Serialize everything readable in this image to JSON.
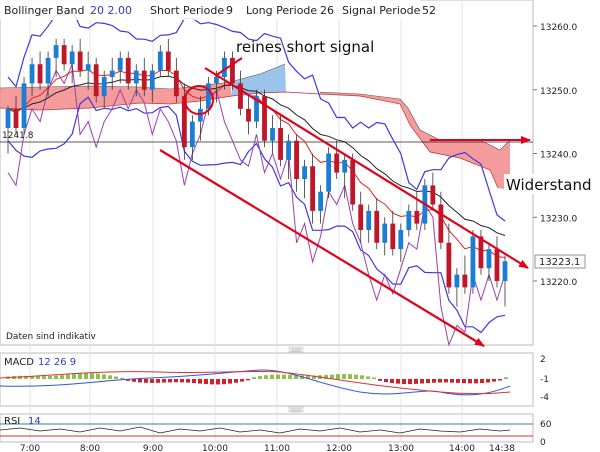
{
  "header": {
    "bollinger_label": "Bollinger Band",
    "bollinger_values": "20  2.00",
    "short_label": "Short Periode",
    "short_value": "9",
    "long_label": "Long Periode",
    "long_value": "26",
    "signal_label": "Signal Periode",
    "signal_value": "52"
  },
  "annotations": {
    "short_signal": "reines short signal",
    "resistance": "Widerstand",
    "disclaimer": "Daten sind indikativ",
    "left_marker": "1241.8"
  },
  "price_box": "13223.1",
  "colors": {
    "candle_up": "#1a7fd4",
    "candle_down": "#c0162a",
    "bollinger": "#3a3ae0",
    "ma_black": "#222222",
    "ma_red": "#e0261a",
    "cloud_red": "#f28b8b",
    "cloud_blue": "#8ab8e8",
    "purple": "#9a3fb0",
    "annotation": "#e3001b",
    "macd_pos": "#8bc34a",
    "macd_neg": "#d0202a",
    "macd_line": "#3355dd",
    "signal_line": "#e03030"
  },
  "macd": {
    "label": "MACD",
    "values": "12  26  9",
    "ticks": [
      "2",
      "-1",
      "-4"
    ]
  },
  "rsi": {
    "label": "RSI",
    "value": "14",
    "ticks": [
      "60",
      "0"
    ]
  },
  "chart_data": {
    "type": "candlestick",
    "x_axis": {
      "ticks": [
        "7:00",
        "8:00",
        "9:00",
        "10:00",
        "11:00",
        "12:00",
        "13:00",
        "14:00",
        "14:38"
      ]
    },
    "y_axis": {
      "ticks": [
        13260.0,
        13250.0,
        13240.0,
        13230.0,
        13220.0
      ],
      "range": [
        13214,
        13263
      ]
    },
    "last_price": 13223.1,
    "resistance_level": 13240.5,
    "candles": [
      [
        13244,
        13247.5,
        13240,
        13247
      ],
      [
        13247,
        13249,
        13243,
        13244
      ],
      [
        13244,
        13252,
        13243,
        13251
      ],
      [
        13251,
        13255,
        13249,
        13254
      ],
      [
        13254,
        13256,
        13250,
        13251
      ],
      [
        13251,
        13256,
        13249,
        13255
      ],
      [
        13255,
        13258,
        13252,
        13257
      ],
      [
        13257,
        13258,
        13253,
        13254
      ],
      [
        13254,
        13257,
        13251,
        13256
      ],
      [
        13256,
        13258,
        13252,
        13253
      ],
      [
        13253,
        13256,
        13250,
        13254
      ],
      [
        13254,
        13255,
        13248,
        13249
      ],
      [
        13249,
        13253,
        13247,
        13252
      ],
      [
        13252,
        13255,
        13250,
        13253
      ],
      [
        13253,
        13256,
        13251,
        13255
      ],
      [
        13255,
        13256,
        13250,
        13251
      ],
      [
        13251,
        13254,
        13249,
        13253
      ],
      [
        13253,
        13255,
        13249,
        13250
      ],
      [
        13250,
        13254,
        13248,
        13253
      ],
      [
        13253,
        13257,
        13252,
        13256
      ],
      [
        13256,
        13258,
        13252,
        13253
      ],
      [
        13253,
        13255,
        13248,
        13249
      ],
      [
        13249,
        13251,
        13239,
        13241
      ],
      [
        13241,
        13246,
        13239,
        13245
      ],
      [
        13245,
        13249,
        13242,
        13247
      ],
      [
        13247,
        13252,
        13246,
        13251
      ],
      [
        13251,
        13253,
        13248,
        13252
      ],
      [
        13252,
        13256,
        13250,
        13255
      ],
      [
        13255,
        13256,
        13250,
        13251
      ],
      [
        13251,
        13253,
        13246,
        13247
      ],
      [
        13247,
        13249,
        13243,
        13245
      ],
      [
        13245,
        13250,
        13244,
        13249
      ],
      [
        13249,
        13250,
        13241,
        13242
      ],
      [
        13242,
        13246,
        13240,
        13244
      ],
      [
        13244,
        13246,
        13238,
        13239
      ],
      [
        13239,
        13243,
        13236,
        13242
      ],
      [
        13242,
        13243,
        13234,
        13236
      ],
      [
        13236,
        13239,
        13233,
        13238
      ],
      [
        13238,
        13240,
        13229,
        13231
      ],
      [
        13231,
        13235,
        13229,
        13234
      ],
      [
        13234,
        13241,
        13233,
        13240
      ],
      [
        13240,
        13242,
        13236,
        13237
      ],
      [
        13237,
        13240,
        13233,
        13239
      ],
      [
        13239,
        13240,
        13231,
        13232
      ],
      [
        13232,
        13234,
        13226,
        13228
      ],
      [
        13228,
        13232,
        13226,
        13231
      ],
      [
        13231,
        13233,
        13225,
        13226
      ],
      [
        13226,
        13230,
        13224,
        13229
      ],
      [
        13229,
        13231,
        13224,
        13225
      ],
      [
        13225,
        13229,
        13223,
        13228
      ],
      [
        13228,
        13232,
        13227,
        13231
      ],
      [
        13231,
        13234,
        13228,
        13229
      ],
      [
        13229,
        13236,
        13228,
        13235
      ],
      [
        13235,
        13237,
        13231,
        13232
      ],
      [
        13232,
        13234,
        13225,
        13226
      ],
      [
        13226,
        13229,
        13218,
        13219
      ],
      [
        13219,
        13222,
        13216,
        13221
      ],
      [
        13221,
        13224,
        13218,
        13219
      ],
      [
        13219,
        13228,
        13218,
        13227
      ],
      [
        13227,
        13228,
        13221,
        13222
      ],
      [
        13222,
        13226,
        13220,
        13225
      ],
      [
        13225,
        13227,
        13219,
        13220
      ],
      [
        13220,
        13224,
        13216,
        13223.1
      ]
    ]
  }
}
